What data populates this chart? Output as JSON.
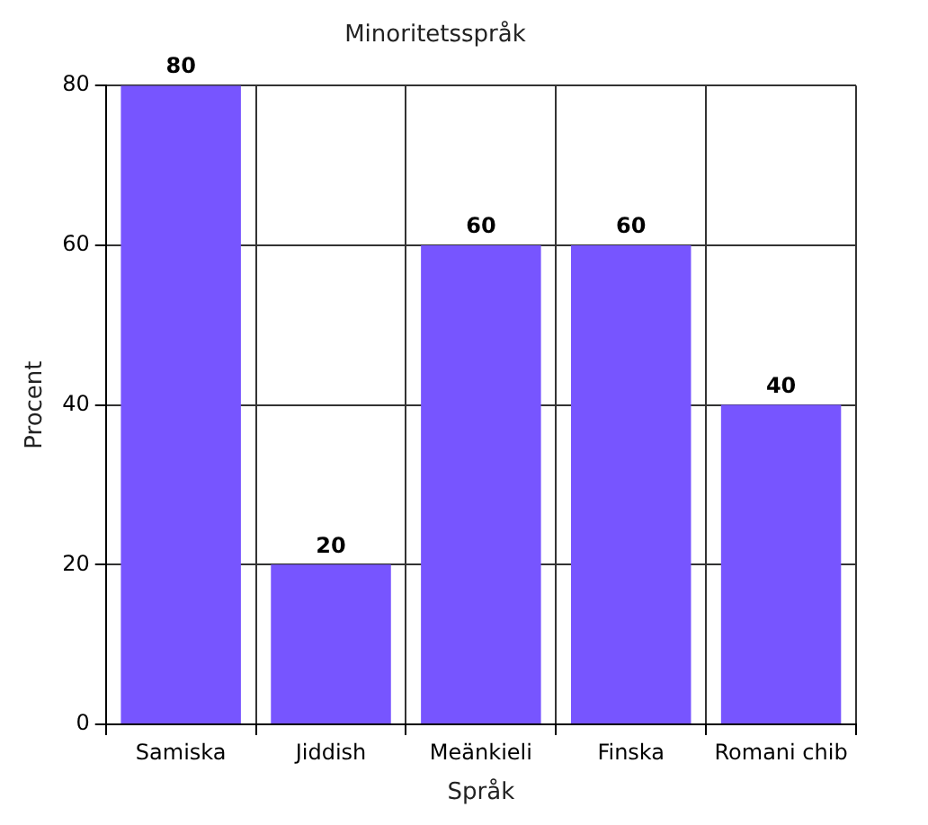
{
  "chart_data": {
    "type": "bar",
    "title": "Minoritetsspråk",
    "xlabel": "Språk",
    "ylabel": "Procent",
    "categories": [
      "Samiska",
      "Jiddish",
      "Meänkieli",
      "Finska",
      "Romani chib"
    ],
    "values": [
      80,
      20,
      60,
      60,
      40
    ],
    "color": "#7755ff",
    "ylim": [
      0,
      80
    ],
    "yticks": [
      0,
      20,
      40,
      60,
      80
    ],
    "grid": true,
    "data_labels": true
  }
}
